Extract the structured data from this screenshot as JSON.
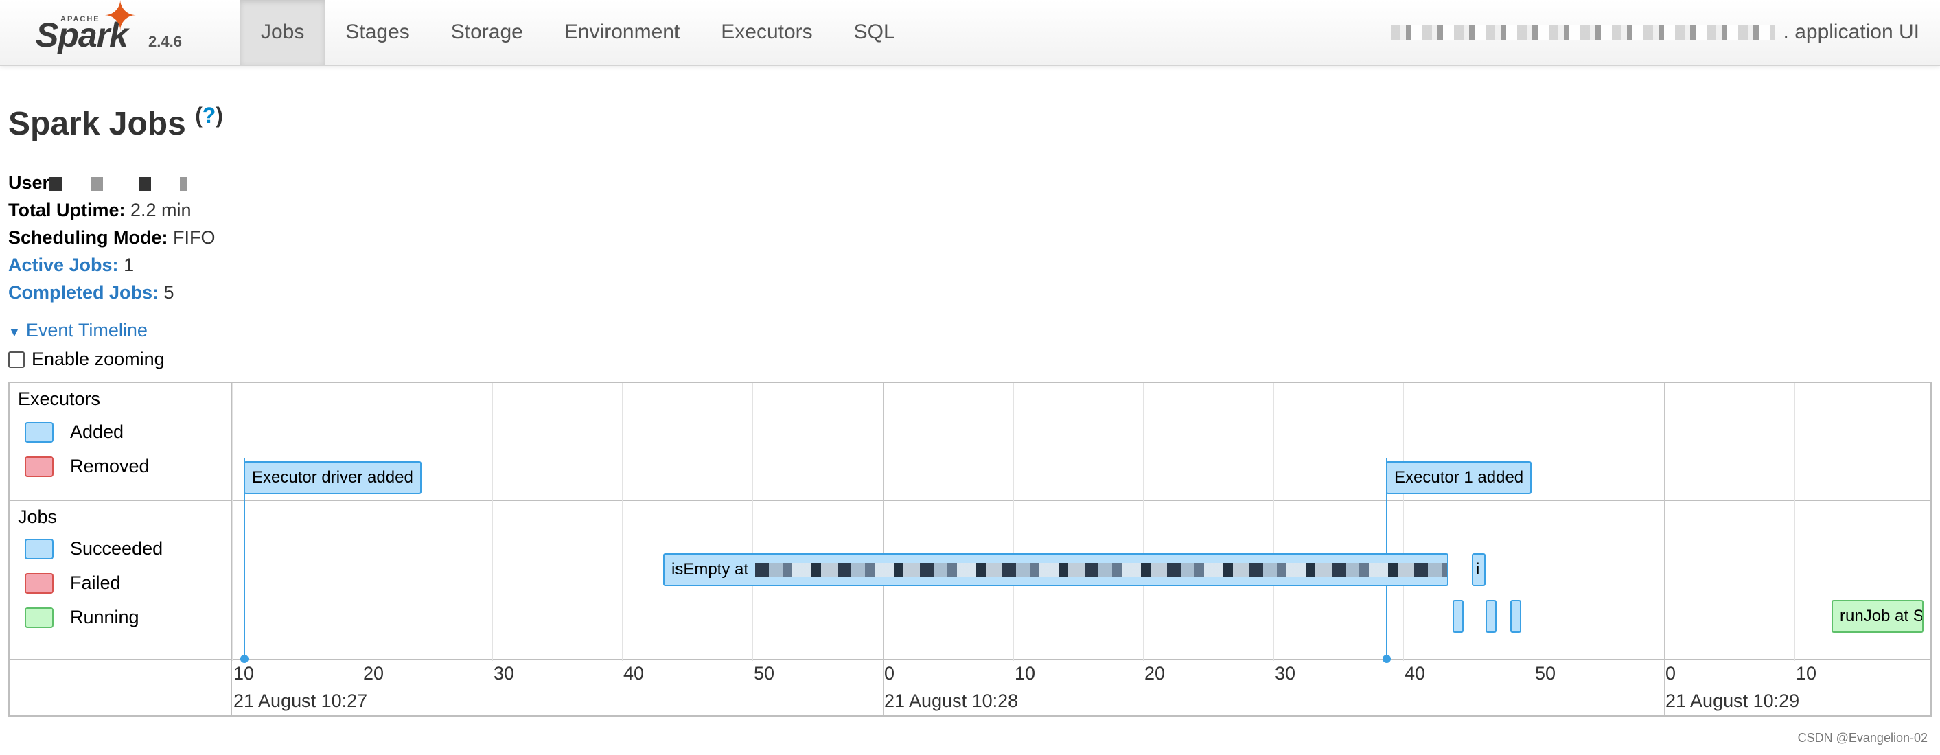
{
  "brand": {
    "apache": "APACHE",
    "name": "Spark",
    "version": "2.4.6",
    "logo_color": "#e25a1c"
  },
  "nav": {
    "tabs": [
      {
        "label": "Jobs",
        "active": true
      },
      {
        "label": "Stages"
      },
      {
        "label": "Storage"
      },
      {
        "label": "Environment"
      },
      {
        "label": "Executors"
      },
      {
        "label": "SQL"
      }
    ],
    "app_name": ". application UI"
  },
  "header": {
    "title": "Spark Jobs",
    "help": "?",
    "user_label": "User",
    "uptime_label": "Total Uptime:",
    "uptime_value": "2.2 min",
    "sched_label": "Scheduling Mode:",
    "sched_value": "FIFO",
    "active_label": "Active Jobs:",
    "active_value": "1",
    "completed_label": "Completed Jobs:",
    "completed_value": "5"
  },
  "timeline": {
    "toggle_label": "Event Timeline",
    "zoom_label": "Enable zooming",
    "executors": {
      "title": "Executors",
      "legend": [
        {
          "label": "Added",
          "color": "#b8e0fb"
        },
        {
          "label": "Removed",
          "color": "#f4a7b1"
        }
      ],
      "events": [
        "Executor driver added",
        "Executor 1 added"
      ]
    },
    "jobs": {
      "title": "Jobs",
      "legend": [
        {
          "label": "Succeeded",
          "color": "#b8e0fb"
        },
        {
          "label": "Failed",
          "color": "#f4a7b1"
        },
        {
          "label": "Running",
          "color": "#c6f8c9"
        }
      ],
      "bars": [
        "isEmpty at ",
        "i",
        "runJob at S"
      ]
    },
    "ticks": [
      "10",
      "20",
      "30",
      "40",
      "50",
      "0",
      "10",
      "20",
      "30",
      "40",
      "50",
      "0",
      "10"
    ],
    "major_labels": [
      "21 August 10:27",
      "21 August 10:28",
      "21 August 10:29"
    ]
  },
  "watermark": "CSDN @Evangelion-02"
}
